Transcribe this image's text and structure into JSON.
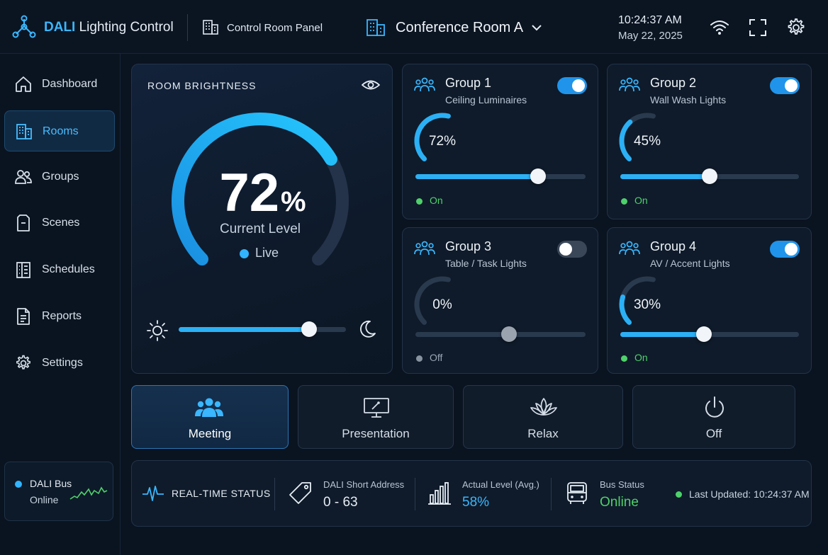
{
  "header": {
    "brand": "DALI",
    "app_title": "Lighting Control",
    "panel_label": "Control Room Panel",
    "room": "Conference Room A",
    "time": "10:24:37 AM",
    "date": "May 22, 2025",
    "accent_color": "#3ab7ff"
  },
  "sidebar": {
    "items": [
      {
        "label": "Dashboard",
        "icon": "home-icon",
        "active": false
      },
      {
        "label": "Rooms",
        "icon": "building-icon",
        "active": true
      },
      {
        "label": "Groups",
        "icon": "users-icon",
        "active": false
      },
      {
        "label": "Scenes",
        "icon": "scene-icon",
        "active": false
      },
      {
        "label": "Schedules",
        "icon": "schedule-icon",
        "active": false
      },
      {
        "label": "Reports",
        "icon": "report-icon",
        "active": false
      },
      {
        "label": "Settings",
        "icon": "gear-icon",
        "active": false
      }
    ],
    "bus": {
      "title": "DALI Bus",
      "state": "Online"
    }
  },
  "brightness": {
    "title": "ROOM BRIGHTNESS",
    "value": "72",
    "unit": "%",
    "caption": "Current Level",
    "live_label": "Live",
    "level": 0.72,
    "slider_level": 0.78
  },
  "groups": [
    {
      "title": "Group 1",
      "subtitle": "Ceiling Luminaires",
      "value": "72%",
      "level": 0.72,
      "slider": 0.72,
      "enabled": true,
      "status": "On"
    },
    {
      "title": "Group 2",
      "subtitle": "Wall Wash Lights",
      "value": "45%",
      "level": 0.45,
      "slider": 0.5,
      "enabled": true,
      "status": "On"
    },
    {
      "title": "Group 3",
      "subtitle": "Table / Task Lights",
      "value": "0%",
      "level": 0.0,
      "slider": 0.55,
      "enabled": false,
      "status": "Off"
    },
    {
      "title": "Group 4",
      "subtitle": "AV / Accent Lights",
      "value": "30%",
      "level": 0.3,
      "slider": 0.47,
      "enabled": true,
      "status": "On"
    }
  ],
  "scenes": [
    {
      "label": "Meeting",
      "icon": "people-icon",
      "active": true
    },
    {
      "label": "Presentation",
      "icon": "presentation-icon",
      "active": false
    },
    {
      "label": "Relax",
      "icon": "lotus-icon",
      "active": false
    },
    {
      "label": "Off",
      "icon": "power-icon",
      "active": false
    }
  ],
  "status": {
    "title": "REAL-TIME STATUS",
    "address_label": "DALI Short Address",
    "address_value": "0 - 63",
    "level_label": "Actual Level (Avg.)",
    "level_value": "58%",
    "bus_label": "Bus Status",
    "bus_value": "Online",
    "updated": "Last Updated: 10:24:37 AM",
    "online_color": "#4ed16b",
    "value_color": "#3ab7ff"
  }
}
